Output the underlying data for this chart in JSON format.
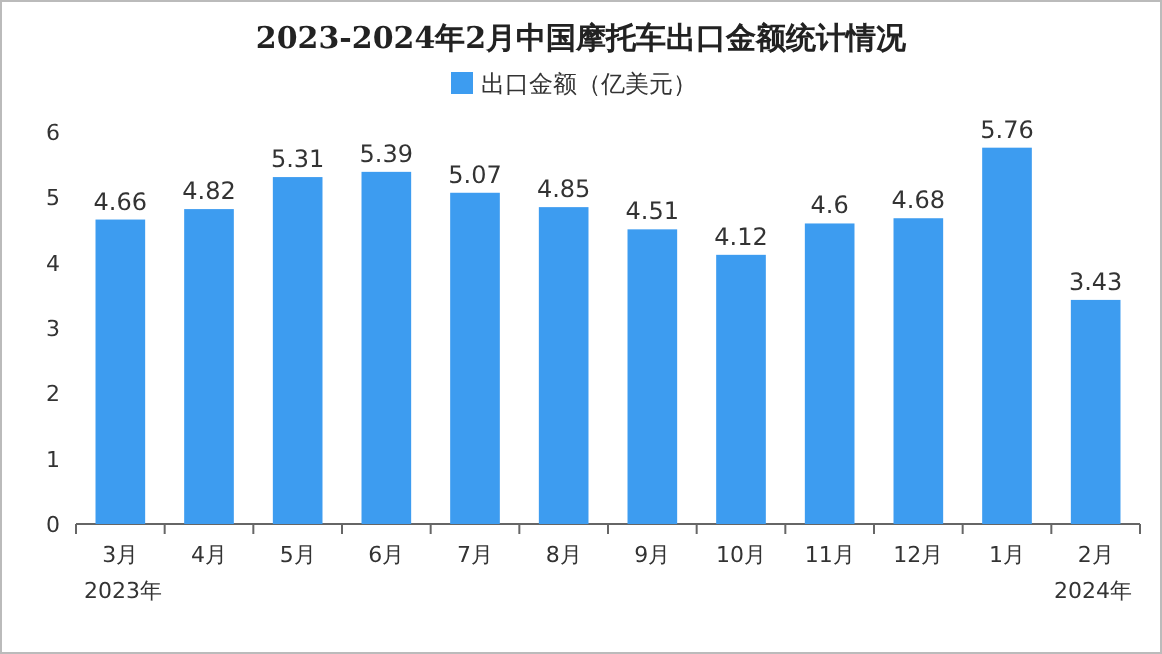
{
  "chart_data": {
    "type": "bar",
    "title": "2023-2024年2月中国摩托车出口金额统计情况",
    "categories": [
      "3月",
      "4月",
      "5月",
      "6月",
      "7月",
      "8月",
      "9月",
      "10月",
      "11月",
      "12月",
      "1月",
      "2月"
    ],
    "series": [
      {
        "name": "出口金额（亿美元）",
        "color": "#3d9cf0",
        "values": [
          4.66,
          4.82,
          5.31,
          5.39,
          5.07,
          4.85,
          4.51,
          4.12,
          4.6,
          4.68,
          5.76,
          3.43
        ]
      }
    ],
    "ylim": [
      0,
      6
    ],
    "yticks": [
      0,
      1,
      2,
      3,
      4,
      5,
      6
    ],
    "data_labels": true,
    "legend": "top",
    "grid": false,
    "annotations": [
      "2023年",
      "2024年"
    ]
  }
}
